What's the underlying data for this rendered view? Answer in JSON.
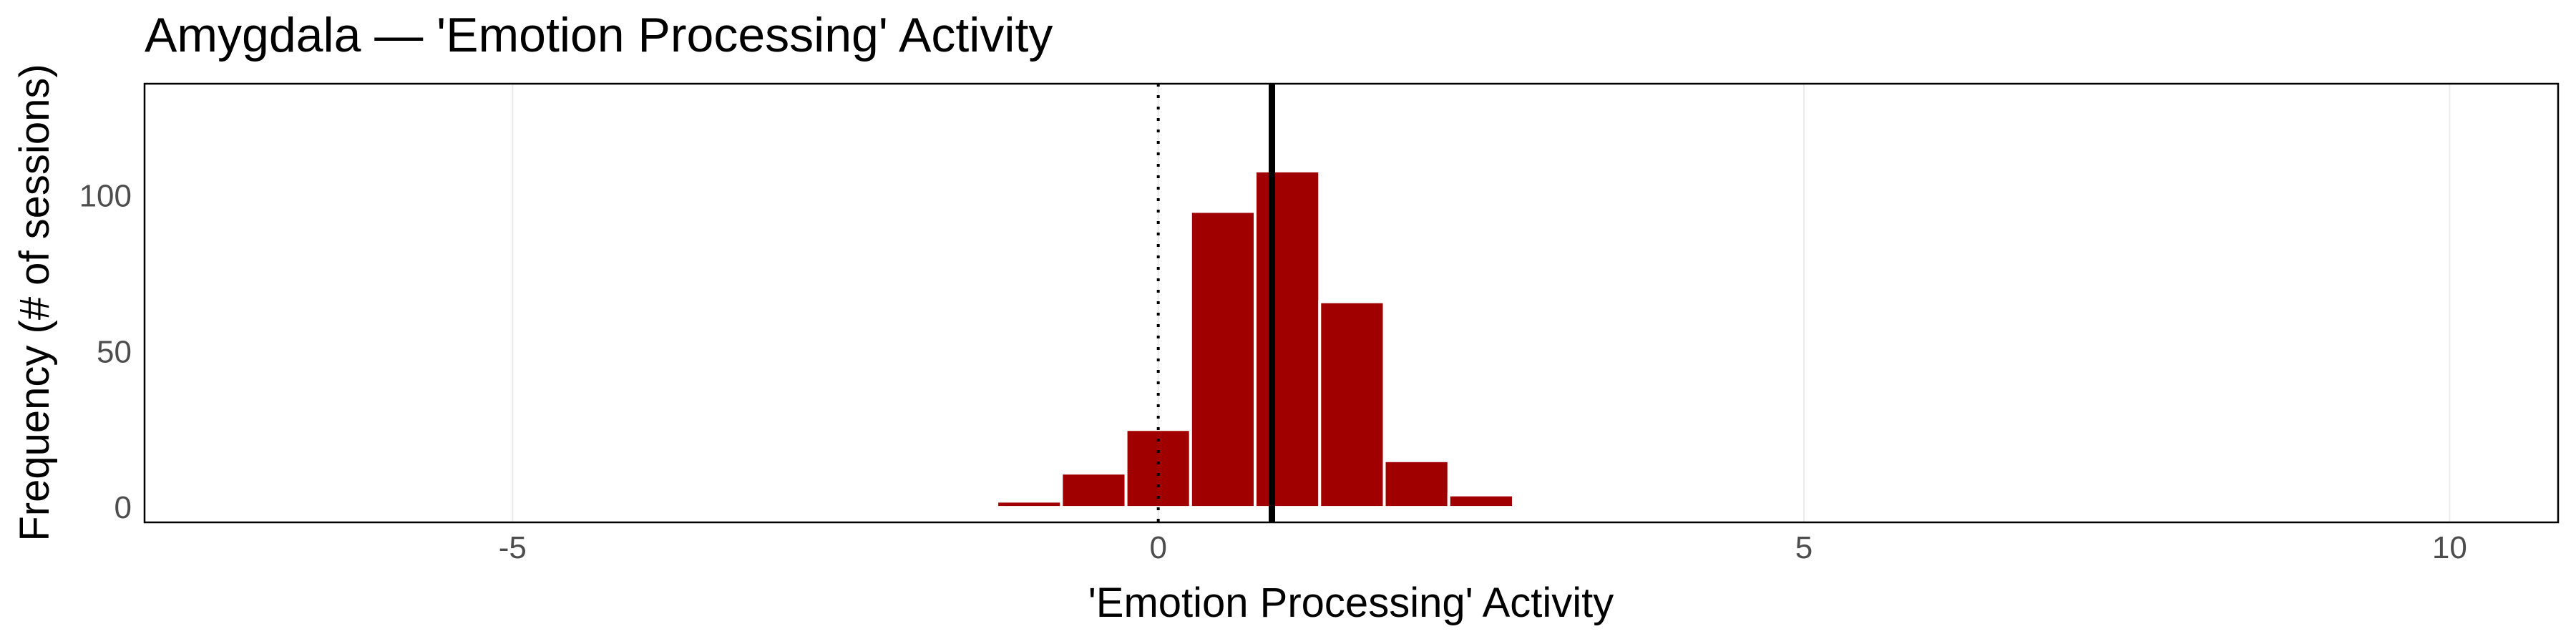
{
  "chart_data": {
    "type": "bar",
    "title": "Amygdala — 'Emotion Processing' Activity",
    "xlabel": "'Emotion Processing' Activity",
    "ylabel": "Frequency (# of sessions)",
    "xlim": [
      -7.85,
      10.84
    ],
    "ylim": [
      -4.8,
      136
    ],
    "xticks": [
      -5,
      0,
      5,
      10
    ],
    "xtick_labels": [
      "-5",
      "0",
      "5",
      "10"
    ],
    "yticks": [
      0,
      50,
      100
    ],
    "ytick_labels": [
      "0",
      "50",
      "100"
    ],
    "bin_width": 0.5,
    "bin_centers": [
      -1.0,
      -0.5,
      0.0,
      0.5,
      1.0,
      1.5,
      2.0,
      2.5
    ],
    "values": [
      2,
      11,
      25,
      95,
      108,
      66,
      15,
      4
    ],
    "reference_line_dotted_x": 0,
    "mean_line_x": 0.88,
    "grid": true,
    "bar_color": "#A00000"
  }
}
